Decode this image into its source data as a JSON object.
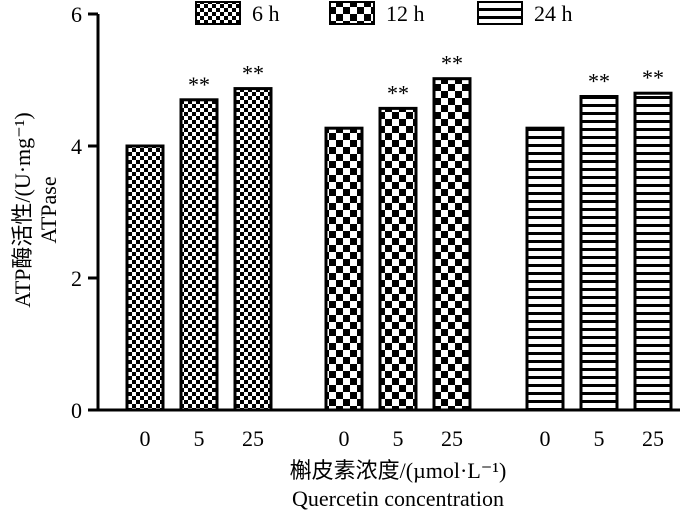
{
  "chart_data": {
    "type": "bar",
    "ylabel_cn": "ATP酶活性/(U·mg⁻¹)",
    "ylabel_en": "ATPase",
    "xlabel_cn": "槲皮素浓度/(µmol·L⁻¹)",
    "xlabel_en": "Quercetin concentration",
    "ylim": [
      0,
      6
    ],
    "yticks": [
      "0",
      "2",
      "4",
      "6"
    ],
    "categories": [
      "0",
      "5",
      "25"
    ],
    "legend_position": "top",
    "series": [
      {
        "name": "6 h",
        "pattern": "checker-fine",
        "values": [
          4.0,
          4.7,
          4.87
        ],
        "significance": [
          "",
          "**",
          "**"
        ]
      },
      {
        "name": "12 h",
        "pattern": "checker-large",
        "values": [
          4.27,
          4.57,
          5.02
        ],
        "significance": [
          "",
          "**",
          "**"
        ]
      },
      {
        "name": "24 h",
        "pattern": "horizontal-stripes",
        "values": [
          4.27,
          4.75,
          4.8
        ],
        "significance": [
          "",
          "**",
          "**"
        ]
      }
    ]
  }
}
